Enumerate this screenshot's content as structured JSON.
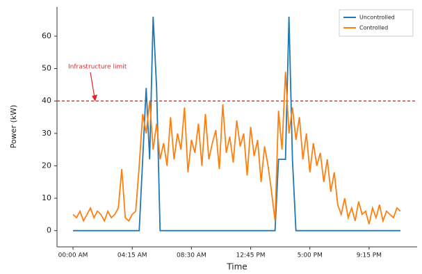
{
  "chart_data": {
    "type": "line",
    "ylabel": "Power (kW)",
    "xlabel": "Time",
    "x": [
      0,
      0.25,
      0.5,
      0.75,
      1,
      1.25,
      1.5,
      1.75,
      2,
      2.25,
      2.5,
      2.75,
      3,
      3.25,
      3.5,
      3.75,
      4,
      4.25,
      4.5,
      4.75,
      5,
      5.25,
      5.5,
      5.75,
      6,
      6.25,
      6.5,
      6.75,
      7,
      7.25,
      7.5,
      7.75,
      8,
      8.25,
      8.5,
      8.75,
      9,
      9.25,
      9.5,
      9.75,
      10,
      10.25,
      10.5,
      10.75,
      11,
      11.25,
      11.5,
      11.75,
      12,
      12.25,
      12.5,
      12.75,
      13,
      13.25,
      13.5,
      13.75,
      14,
      14.25,
      14.5,
      14.75,
      15,
      15.25,
      15.5,
      15.75,
      16,
      16.25,
      16.5,
      16.75,
      17,
      17.25,
      17.5,
      17.75,
      18,
      18.25,
      18.5,
      18.75,
      19,
      19.25,
      19.5,
      19.75,
      20,
      20.25,
      20.5,
      20.75,
      21,
      21.25,
      21.5,
      21.75,
      22,
      22.25,
      22.5,
      22.75,
      23,
      23.25,
      23.5
    ],
    "series": [
      {
        "name": "Uncontrolled",
        "color": "#1f77b4",
        "values": [
          0,
          0,
          0,
          0,
          0,
          0,
          0,
          0,
          0,
          0,
          0,
          0,
          0,
          0,
          0,
          0,
          0,
          0,
          0,
          0,
          22,
          44,
          22,
          66,
          44,
          0,
          0,
          0,
          0,
          0,
          0,
          0,
          0,
          0,
          0,
          0,
          0,
          0,
          0,
          0,
          0,
          0,
          0,
          0,
          0,
          0,
          0,
          0,
          0,
          0,
          0,
          0,
          0,
          0,
          0,
          0,
          0,
          0,
          0,
          22,
          22,
          22,
          66,
          22,
          0,
          0,
          0,
          0,
          0,
          0,
          0,
          0,
          0,
          0,
          0,
          0,
          0,
          0,
          0,
          0,
          0,
          0,
          0,
          0,
          0,
          0,
          0,
          0,
          0,
          0,
          0,
          0,
          0,
          0,
          0
        ]
      },
      {
        "name": "Controlled",
        "color": "#ff7f0e",
        "values": [
          5,
          4,
          6,
          3,
          5,
          7,
          4,
          6,
          5,
          3,
          6,
          4,
          5,
          7,
          19,
          4,
          3,
          5,
          6,
          20,
          36,
          30,
          40,
          25,
          33,
          22,
          27,
          20,
          35,
          22,
          30,
          25,
          38,
          18,
          28,
          24,
          33,
          20,
          36,
          22,
          27,
          31,
          19,
          39,
          24,
          29,
          21,
          34,
          26,
          30,
          17,
          32,
          23,
          28,
          15,
          26,
          20,
          12,
          3,
          37,
          25,
          49,
          30,
          38,
          28,
          35,
          22,
          30,
          18,
          27,
          20,
          24,
          15,
          22,
          12,
          18,
          8,
          5,
          10,
          4,
          7,
          3,
          9,
          5,
          6,
          2,
          7,
          4,
          8,
          3,
          6,
          5,
          4,
          7,
          6
        ]
      }
    ],
    "xlim": [
      -1.15,
      24.7
    ],
    "xticks": [
      {
        "value": 0,
        "label": "00:00 AM"
      },
      {
        "value": 4.25,
        "label": "04:15 AM"
      },
      {
        "value": 8.5,
        "label": "08:30 AM"
      },
      {
        "value": 12.75,
        "label": "12:45 PM"
      },
      {
        "value": 17,
        "label": "5:00 PM"
      },
      {
        "value": 21.25,
        "label": "9:15 PM"
      }
    ],
    "ylim": [
      -5,
      69
    ],
    "yticks": [
      0,
      10,
      20,
      30,
      40,
      50,
      60
    ],
    "limit": 40,
    "limit_color": "#e0262b",
    "annotation": "Infrastructure limit",
    "legend": "upper right"
  }
}
